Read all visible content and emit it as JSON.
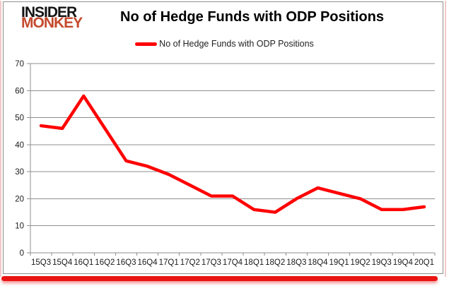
{
  "logo": {
    "line1": "INSIDER",
    "line2": "MONKEY"
  },
  "header": {
    "title": "No of Hedge Funds with ODP Positions"
  },
  "legend": {
    "label": "No of Hedge Funds with ODP Positions"
  },
  "colors": {
    "line_red": "#fe0000",
    "accent_bar_red": "#e91414",
    "logo_red": "#c44a2c",
    "grid_gray": "#8f8f8f",
    "tick_label": "#1a1a1a"
  },
  "chart_data": {
    "type": "line",
    "title": "No of Hedge Funds with ODP Positions",
    "categories": [
      "15Q3",
      "15Q4",
      "16Q1",
      "16Q2",
      "16Q3",
      "16Q4",
      "17Q1",
      "17Q2",
      "17Q3",
      "17Q4",
      "18Q1",
      "18Q2",
      "18Q3",
      "18Q4",
      "19Q1",
      "19Q2",
      "19Q3",
      "19Q4",
      "20Q1"
    ],
    "series": [
      {
        "name": "No of Hedge Funds with ODP Positions",
        "values": [
          47,
          46,
          58,
          46,
          34,
          32,
          29,
          25,
          21,
          21,
          16,
          15,
          20,
          24,
          22,
          20,
          16,
          16,
          17
        ]
      }
    ],
    "xlabel": "",
    "ylabel": "",
    "ylim": [
      0,
      70
    ],
    "yticks": [
      0,
      10,
      20,
      30,
      40,
      50,
      60,
      70
    ],
    "grid": true,
    "legend_position": "top-center"
  }
}
